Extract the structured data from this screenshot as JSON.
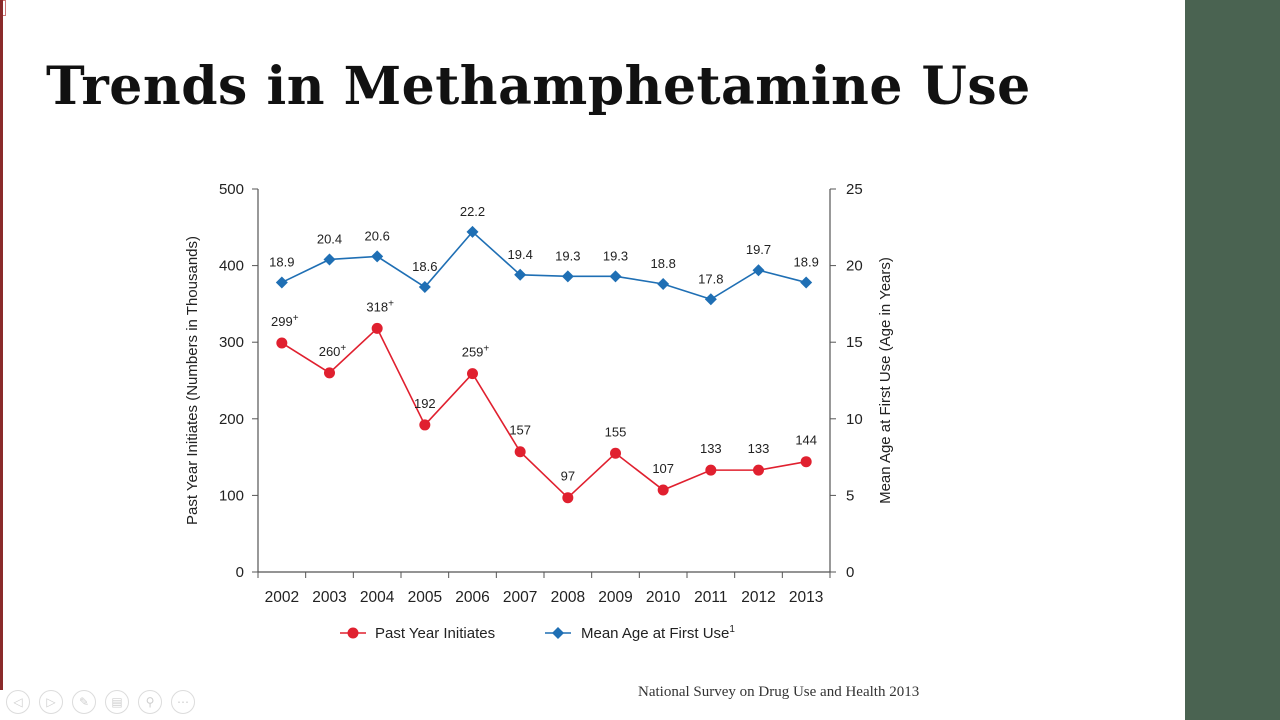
{
  "slide": {
    "title": "Trends in Methamphetamine Use",
    "source": "National Survey on Drug Use and Health 2013"
  },
  "nav": {
    "buttons": [
      {
        "icon": "prev-arrow-icon",
        "glyph": "◁"
      },
      {
        "icon": "next-arrow-icon",
        "glyph": "▷"
      },
      {
        "icon": "pen-icon",
        "glyph": "✎"
      },
      {
        "icon": "slides-icon",
        "glyph": "▤"
      },
      {
        "icon": "zoom-icon",
        "glyph": "⚲"
      },
      {
        "icon": "more-icon",
        "glyph": "⋯"
      }
    ]
  },
  "colors": {
    "initiates": "#e0202f",
    "mean_age": "#1f6fb4",
    "side_panel": "#4a6351"
  },
  "chart_data": {
    "type": "line",
    "categories": [
      "2002",
      "2003",
      "2004",
      "2005",
      "2006",
      "2007",
      "2008",
      "2009",
      "2010",
      "2011",
      "2012",
      "2013"
    ],
    "ylabel": "Past Year Initiates (Numbers in Thousands)",
    "y2label": "Mean Age at First Use (Age in Years)",
    "ylim": [
      0,
      500
    ],
    "y2lim": [
      0,
      25
    ],
    "yticks": [
      0,
      100,
      200,
      300,
      400,
      500
    ],
    "y2ticks": [
      0,
      5,
      10,
      15,
      20,
      25
    ],
    "legend_position": "bottom",
    "series": [
      {
        "name": "Past Year Initiates",
        "axis": "left",
        "marker": "circle",
        "values": [
          299,
          260,
          318,
          192,
          259,
          157,
          97,
          155,
          107,
          133,
          133,
          144
        ],
        "labels": [
          "299",
          "260",
          "318",
          "192",
          "259",
          "157",
          "97",
          "155",
          "107",
          "133",
          "133",
          "144"
        ],
        "sup": [
          "+",
          "+",
          "+",
          "",
          "+",
          "",
          "",
          "",
          "",
          "",
          "",
          ""
        ]
      },
      {
        "name": "Mean Age at First Use",
        "name_sup": "1",
        "axis": "right",
        "marker": "diamond",
        "values": [
          18.9,
          20.4,
          20.6,
          18.6,
          22.2,
          19.4,
          19.3,
          19.3,
          18.8,
          17.8,
          19.7,
          18.9
        ],
        "labels": [
          "18.9",
          "20.4",
          "20.6",
          "18.6",
          "22.2",
          "19.4",
          "19.3",
          "19.3",
          "18.8",
          "17.8",
          "19.7",
          "18.9"
        ],
        "sup": [
          "",
          "",
          "",
          "",
          "",
          "",
          "",
          "",
          "",
          "",
          "",
          ""
        ]
      }
    ]
  }
}
